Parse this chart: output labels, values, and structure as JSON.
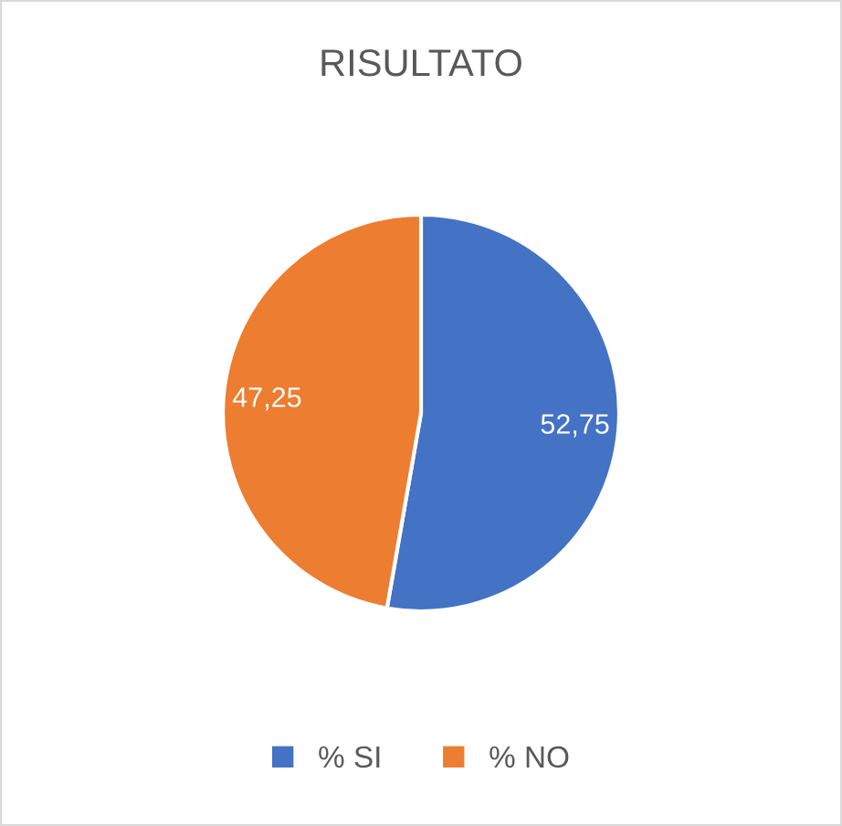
{
  "chart_data": {
    "type": "pie",
    "title": "RISULTATO",
    "categories": [
      "% SI",
      "% NO"
    ],
    "values": [
      52.75,
      47.25
    ],
    "value_labels": [
      "52,75",
      "47,25"
    ],
    "colors": [
      "#4472c4",
      "#ed7d31"
    ],
    "legend": "bottom"
  }
}
